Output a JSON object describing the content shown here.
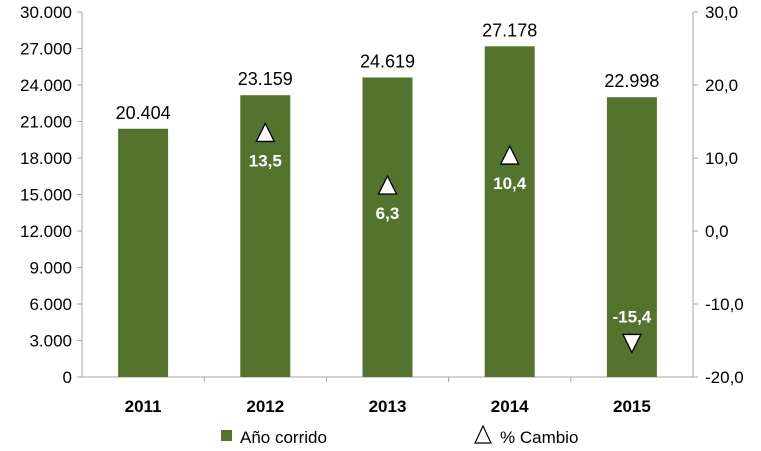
{
  "chart_data": {
    "type": "bar",
    "categories": [
      "2011",
      "2012",
      "2013",
      "2014",
      "2015"
    ],
    "series": [
      {
        "name": "Año corrido",
        "axis": "left",
        "values": [
          20404,
          23159,
          24619,
          27178,
          22998
        ],
        "value_labels": [
          "20.404",
          "23.159",
          "24.619",
          "27.178",
          "22.998"
        ],
        "color": "#53732E"
      },
      {
        "name": "% Cambio",
        "axis": "right",
        "marker": "triangle",
        "values": [
          null,
          13.5,
          6.3,
          10.4,
          -15.4
        ],
        "value_labels": [
          "",
          "13,5",
          "6,3",
          "10,4",
          "-15,4"
        ],
        "directions": [
          "",
          "up",
          "up",
          "up",
          "down"
        ]
      }
    ],
    "left_axis": {
      "ylim": [
        0,
        30000
      ],
      "tick_labels": [
        "0",
        "3.000",
        "6.000",
        "9.000",
        "12.000",
        "15.000",
        "18.000",
        "21.000",
        "24.000",
        "27.000",
        "30.000"
      ]
    },
    "right_axis": {
      "ylim": [
        -20,
        30
      ],
      "tick_labels": [
        "-20,0",
        "-10,0",
        "0,0",
        "10,0",
        "20,0",
        "30,0"
      ]
    },
    "grid": false,
    "legend": "bottom-center"
  }
}
